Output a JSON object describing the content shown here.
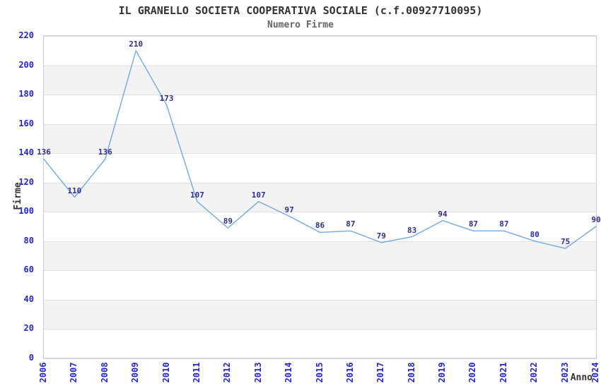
{
  "chart_data": {
    "type": "line",
    "title": "IL GRANELLO SOCIETA COOPERATIVA SOCIALE (c.f.00927710095)",
    "subtitle": "Numero Firme",
    "xlabel": "Anno",
    "ylabel": "Firme",
    "categories": [
      "2006",
      "2007",
      "2008",
      "2009",
      "2010",
      "2011",
      "2012",
      "2013",
      "2014",
      "2015",
      "2016",
      "2017",
      "2018",
      "2019",
      "2020",
      "2021",
      "2022",
      "2023",
      "2024"
    ],
    "values": [
      136,
      110,
      136,
      210,
      173,
      107,
      89,
      107,
      97,
      86,
      87,
      79,
      83,
      94,
      87,
      87,
      80,
      75,
      90
    ],
    "ylim": [
      0,
      220
    ],
    "yticks": [
      0,
      20,
      40,
      60,
      80,
      100,
      120,
      140,
      160,
      180,
      200,
      220
    ],
    "grid": "horizontal",
    "legend": "none",
    "style": {
      "line_color": "#74a9e0",
      "point_label_color": "#2e2e8f",
      "tick_label_color": "#2424cd",
      "band_color": "#f3f3f3",
      "grid_color": "#e0e0e0",
      "border_color": "#cccccc",
      "title_color": "#333333",
      "subtitle_color": "#646464"
    }
  }
}
